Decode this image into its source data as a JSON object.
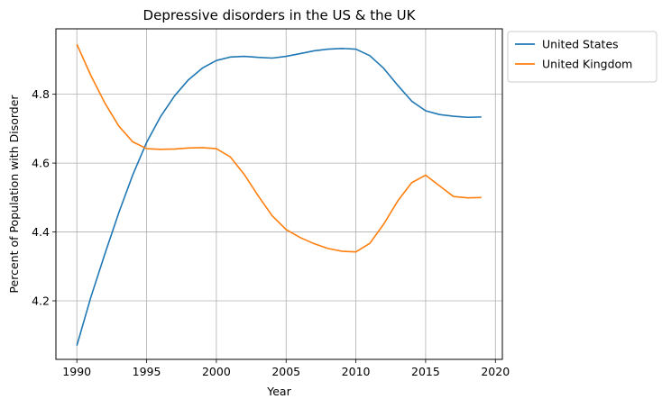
{
  "chart_data": {
    "type": "line",
    "title": "Depressive disorders in the US & the UK",
    "xlabel": "Year",
    "ylabel": "Percent of Population with Disorder",
    "xlim": [
      1988.5,
      2020.5
    ],
    "ylim": [
      4.03,
      4.99
    ],
    "xticks": [
      1990,
      1995,
      2000,
      2005,
      2010,
      2015,
      2020
    ],
    "yticks": [
      4.2,
      4.4,
      4.6,
      4.8
    ],
    "grid": true,
    "legend_position": "outside-upper-right",
    "x": [
      1990,
      1991,
      1992,
      1993,
      1994,
      1995,
      1996,
      1997,
      1998,
      1999,
      2000,
      2001,
      2002,
      2003,
      2004,
      2005,
      2006,
      2007,
      2008,
      2009,
      2010,
      2011,
      2012,
      2013,
      2014,
      2015,
      2016,
      2017,
      2018,
      2019
    ],
    "series": [
      {
        "name": "United States",
        "color": "#1f77b4",
        "values": [
          4.07,
          4.21,
          4.335,
          4.455,
          4.565,
          4.66,
          4.735,
          4.795,
          4.842,
          4.876,
          4.898,
          4.908,
          4.91,
          4.907,
          4.905,
          4.91,
          4.918,
          4.926,
          4.931,
          4.933,
          4.931,
          4.912,
          4.875,
          4.826,
          4.78,
          4.752,
          4.741,
          4.736,
          4.733,
          4.734
        ]
      },
      {
        "name": "United Kingdom",
        "color": "#ff7f0e",
        "values": [
          4.945,
          4.855,
          4.775,
          4.708,
          4.662,
          4.642,
          4.64,
          4.641,
          4.644,
          4.645,
          4.642,
          4.618,
          4.567,
          4.505,
          4.447,
          4.407,
          4.384,
          4.366,
          4.352,
          4.344,
          4.342,
          4.367,
          4.423,
          4.49,
          4.543,
          4.565,
          4.534,
          4.503,
          4.499,
          4.5
        ]
      }
    ]
  }
}
